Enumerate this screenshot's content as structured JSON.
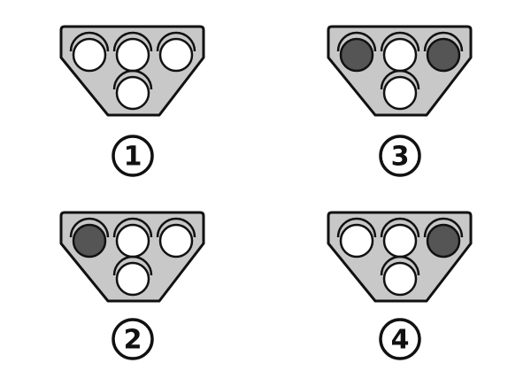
{
  "colors": {
    "background": "#ffffff",
    "panel_fill": "#c8c8c8",
    "outline": "#111111",
    "lamp_lit": "#555555",
    "lamp_unlit": "#ffffff"
  },
  "signals": [
    {
      "label": "1",
      "lamps": {
        "left": "unlit",
        "center": "unlit",
        "right": "unlit",
        "bottom": "unlit"
      }
    },
    {
      "label": "2",
      "lamps": {
        "left": "lit",
        "center": "unlit",
        "right": "unlit",
        "bottom": "unlit"
      }
    },
    {
      "label": "3",
      "lamps": {
        "left": "lit",
        "center": "unlit",
        "right": "lit",
        "bottom": "unlit"
      }
    },
    {
      "label": "4",
      "lamps": {
        "left": "unlit",
        "center": "unlit",
        "right": "lit",
        "bottom": "unlit"
      }
    }
  ]
}
